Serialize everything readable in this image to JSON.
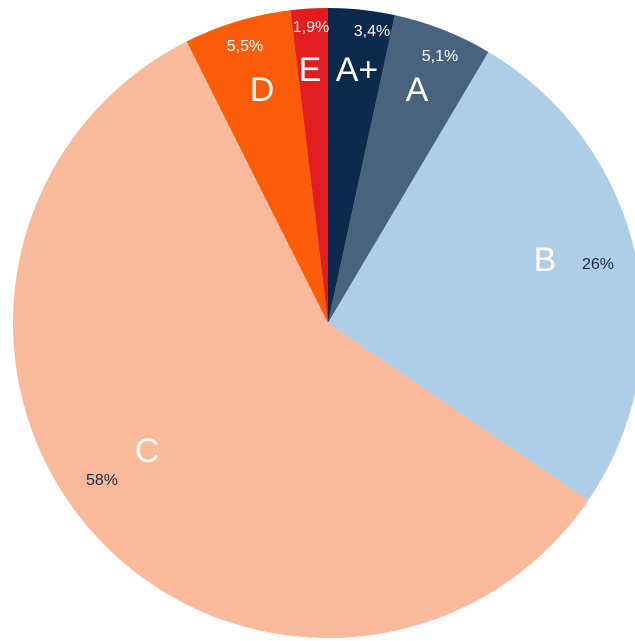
{
  "chart_data": {
    "type": "pie",
    "categories": [
      "A+",
      "A",
      "B",
      "C",
      "D",
      "E"
    ],
    "values": [
      3.4,
      5.1,
      26,
      58,
      5.5,
      1.9
    ],
    "value_labels": [
      "3,4%",
      "5,1%",
      "26%",
      "58%",
      "5,5%",
      "1,9%"
    ],
    "colors": [
      "#0c2a4d",
      "#48637d",
      "#aecde6",
      "#f9b99b",
      "#fb5c09",
      "#e21d1f"
    ]
  }
}
